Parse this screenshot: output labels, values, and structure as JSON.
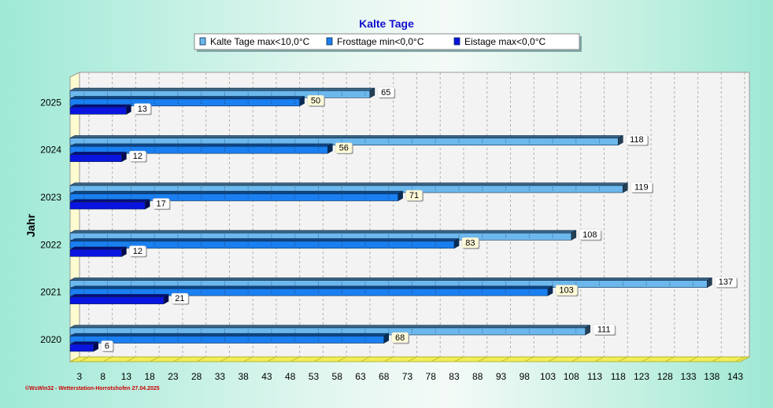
{
  "chart_data": {
    "type": "bar",
    "orientation": "horizontal",
    "title": "Kalte Tage",
    "ylabel": "Jahr",
    "xlabel": "",
    "categories": [
      "2020",
      "2021",
      "2022",
      "2023",
      "2024",
      "2025"
    ],
    "series": [
      {
        "name": "Kalte Tage max<10,0°C",
        "color": "#6cb8ec",
        "values": [
          111,
          137,
          108,
          119,
          118,
          65
        ]
      },
      {
        "name": "Frosttage min<0,0°C",
        "color": "#1a7ff0",
        "values": [
          68,
          103,
          83,
          71,
          56,
          50
        ]
      },
      {
        "name": "Eistage max<0,0°C",
        "color": "#0a14e0",
        "values": [
          6,
          21,
          12,
          17,
          12,
          13
        ]
      }
    ],
    "xlim": [
      1,
      144
    ],
    "x_ticks": [
      3,
      8,
      13,
      18,
      23,
      28,
      33,
      38,
      43,
      48,
      53,
      58,
      63,
      68,
      73,
      78,
      83,
      88,
      93,
      98,
      103,
      108,
      113,
      118,
      123,
      128,
      133,
      138,
      143
    ],
    "grid": true,
    "legend_position": "top-center",
    "footer": "©WsWin32 - Wetterstation-Horrotshofen 27.04.2025"
  }
}
